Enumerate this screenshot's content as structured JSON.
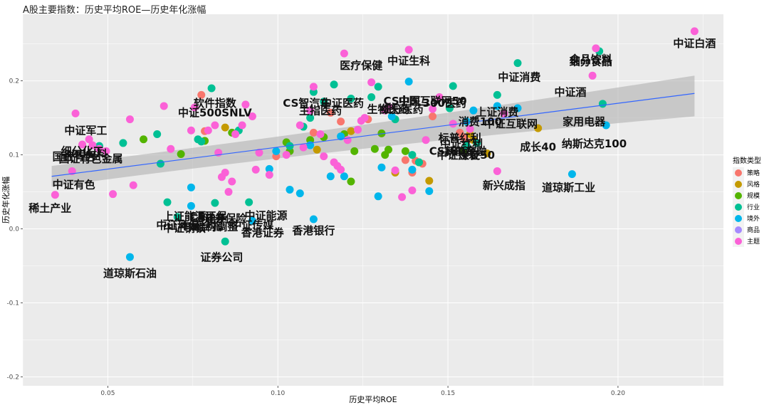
{
  "chart_data": {
    "type": "scatter",
    "title": "A股主要指数：历史平均ROE—历史年化涨幅",
    "xlabel": "历史平均ROE",
    "ylabel": "历史年化涨幅",
    "xlim": [
      0.025,
      0.231
    ],
    "ylim": [
      -0.212,
      0.29
    ],
    "xticks": [
      0.05,
      0.1,
      0.15,
      0.2
    ],
    "xtick_labels": [
      "0.05",
      "0.10",
      "0.15",
      "0.20"
    ],
    "yticks": [
      -0.2,
      -0.1,
      0.0,
      0.1,
      0.2
    ],
    "ytick_labels": [
      "-0.2",
      "-0.1",
      "0.0",
      "0.1",
      "0.2"
    ],
    "legend": {
      "title": "指数类型",
      "position": "right",
      "entries": [
        {
          "name": "策略",
          "color": "#F8766D"
        },
        {
          "name": "风格",
          "color": "#C49A00"
        },
        {
          "name": "规模",
          "color": "#53B400"
        },
        {
          "name": "行业",
          "color": "#00C094"
        },
        {
          "name": "境外",
          "color": "#00B6EB"
        },
        {
          "name": "商品",
          "color": "#A58AFF"
        },
        {
          "name": "主题",
          "color": "#FB61D7"
        }
      ]
    },
    "trend": {
      "x0": 0.0335,
      "y0": 0.071,
      "x1": 0.2225,
      "y1": 0.183,
      "band_low": [
        0.057,
        0.152
      ],
      "band_high": [
        0.085,
        0.207
      ]
    },
    "labels": [
      {
        "text": "中证白酒",
        "x": 0.2225,
        "y": 0.246
      },
      {
        "text": "食品饮料",
        "x": 0.192,
        "y": 0.224
      },
      {
        "text": "细分食品",
        "x": 0.192,
        "y": 0.221
      },
      {
        "text": "医疗保健",
        "x": 0.1245,
        "y": 0.216
      },
      {
        "text": "中证生科",
        "x": 0.1385,
        "y": 0.222
      },
      {
        "text": "中证消费",
        "x": 0.171,
        "y": 0.2
      },
      {
        "text": "中证酒",
        "x": 0.186,
        "y": 0.18
      },
      {
        "text": "软件指数",
        "x": 0.0815,
        "y": 0.165
      },
      {
        "text": "CS智汽车",
        "x": 0.1085,
        "y": 0.165
      },
      {
        "text": "中证医药",
        "x": 0.119,
        "y": 0.165
      },
      {
        "text": "CS中医",
        "x": 0.1365,
        "y": 0.168
      },
      {
        "text": "中国互联网50",
        "x": 0.1455,
        "y": 0.168
      },
      {
        "text": "生物医药",
        "x": 0.1325,
        "y": 0.157
      },
      {
        "text": "主指医药",
        "x": 0.1125,
        "y": 0.155
      },
      {
        "text": "细分医药",
        "x": 0.1365,
        "y": 0.157
      },
      {
        "text": "300医药",
        "x": 0.149,
        "y": 0.165
      },
      {
        "text": "中证500SNLV",
        "x": 0.0815,
        "y": 0.152
      },
      {
        "text": "上证消费",
        "x": 0.1645,
        "y": 0.153
      },
      {
        "text": "家用电器",
        "x": 0.19,
        "y": 0.14
      },
      {
        "text": "消费100",
        "x": 0.1595,
        "y": 0.14
      },
      {
        "text": "中证互联网",
        "x": 0.1685,
        "y": 0.137
      },
      {
        "text": "中证军工",
        "x": 0.0435,
        "y": 0.128
      },
      {
        "text": "标普红利",
        "x": 0.1535,
        "y": 0.118
      },
      {
        "text": "纳斯达克100",
        "x": 0.193,
        "y": 0.11
      },
      {
        "text": "中证红利",
        "x": 0.154,
        "y": 0.11
      },
      {
        "text": "成长40",
        "x": 0.1765,
        "y": 0.106
      },
      {
        "text": "细分化工",
        "x": 0.0425,
        "y": 0.1
      },
      {
        "text": "300材料",
        "x": 0.0435,
        "y": 0.096
      },
      {
        "text": "国证有色",
        "x": 0.04,
        "y": 0.093
      },
      {
        "text": "国证有色金属",
        "x": 0.045,
        "y": 0.09
      },
      {
        "text": "CS新能车",
        "x": 0.1515,
        "y": 0.1
      },
      {
        "text": "180金融",
        "x": 0.155,
        "y": 0.1
      },
      {
        "text": "中证煤炭",
        "x": 0.153,
        "y": 0.095
      },
      {
        "text": "上证50",
        "x": 0.1585,
        "y": 0.095
      },
      {
        "text": "中证有色",
        "x": 0.04,
        "y": 0.055
      },
      {
        "text": "新兴成指",
        "x": 0.1665,
        "y": 0.054
      },
      {
        "text": "道琼斯工业",
        "x": 0.1855,
        "y": 0.051
      },
      {
        "text": "稀土产业",
        "x": 0.033,
        "y": 0.023
      },
      {
        "text": "上证能源",
        "x": 0.0725,
        "y": 0.012
      },
      {
        "text": "CS环保",
        "x": 0.0795,
        "y": 0.012
      },
      {
        "text": "中证能源",
        "x": 0.0965,
        "y": 0.013
      },
      {
        "text": "中证传媒",
        "x": 0.0925,
        "y": 0.0
      },
      {
        "text": "中证钢铁",
        "x": 0.0725,
        "y": -0.004
      },
      {
        "text": "CS电子",
        "x": 0.0795,
        "y": 0.009
      },
      {
        "text": "证券保险",
        "x": 0.0845,
        "y": 0.009
      },
      {
        "text": "中证环保",
        "x": 0.0705,
        "y": 0.0
      },
      {
        "text": "中证全指",
        "x": 0.0775,
        "y": -0.001
      },
      {
        "text": "结构调整",
        "x": 0.082,
        "y": -0.002
      },
      {
        "text": "香港证券",
        "x": 0.0955,
        "y": -0.01
      },
      {
        "text": "香港银行",
        "x": 0.1105,
        "y": -0.007
      },
      {
        "text": "证券公司",
        "x": 0.0835,
        "y": -0.043
      },
      {
        "text": "道琼斯石油",
        "x": 0.0565,
        "y": -0.065
      }
    ],
    "series": [
      {
        "name": "策略",
        "color": "#F8766D",
        "points": [
          [
            0.0775,
            0.181
          ],
          [
            0.0785,
            0.132
          ],
          [
            0.0995,
            0.098
          ],
          [
            0.1105,
            0.13
          ],
          [
            0.1155,
            0.157
          ],
          [
            0.1185,
            0.145
          ],
          [
            0.1265,
            0.148
          ],
          [
            0.1375,
            0.093
          ],
          [
            0.1395,
            0.076
          ],
          [
            0.1405,
            0.092
          ],
          [
            0.1425,
            0.088
          ],
          [
            0.1455,
            0.152
          ],
          [
            0.1535,
            0.13
          ],
          [
            0.1545,
            0.124
          ],
          [
            0.1555,
            0.118
          ]
        ]
      },
      {
        "name": "风格",
        "color": "#C49A00",
        "points": [
          [
            0.0845,
            0.137
          ],
          [
            0.1115,
            0.107
          ],
          [
            0.1215,
            0.132
          ],
          [
            0.1345,
            0.076
          ],
          [
            0.1445,
            0.065
          ],
          [
            0.1565,
            0.128
          ],
          [
            0.1575,
            0.12
          ],
          [
            0.1615,
            0.102
          ],
          [
            0.1765,
            0.136
          ]
        ]
      },
      {
        "name": "规模",
        "color": "#53B400",
        "points": [
          [
            0.0605,
            0.121
          ],
          [
            0.0715,
            0.101
          ],
          [
            0.0785,
            0.119
          ],
          [
            0.0865,
            0.13
          ],
          [
            0.1025,
            0.117
          ],
          [
            0.1035,
            0.105
          ],
          [
            0.1095,
            0.12
          ],
          [
            0.1135,
            0.124
          ],
          [
            0.1195,
            0.128
          ],
          [
            0.1215,
            0.064
          ],
          [
            0.1225,
            0.105
          ],
          [
            0.1285,
            0.108
          ],
          [
            0.1305,
            0.129
          ],
          [
            0.1315,
            0.1
          ],
          [
            0.1325,
            0.107
          ],
          [
            0.1375,
            0.105
          ],
          [
            0.1415,
            0.09
          ],
          [
            0.1545,
            0.106
          ]
        ]
      },
      {
        "name": "行业",
        "color": "#00C094",
        "points": [
          [
            0.0475,
            0.112
          ],
          [
            0.0545,
            0.116
          ],
          [
            0.0645,
            0.128
          ],
          [
            0.0655,
            0.088
          ],
          [
            0.0675,
            0.036
          ],
          [
            0.0705,
            0.016
          ],
          [
            0.0765,
            0.121
          ],
          [
            0.0775,
            0.118
          ],
          [
            0.0805,
            0.19
          ],
          [
            0.0815,
            0.035
          ],
          [
            0.0845,
            -0.017
          ],
          [
            0.0885,
            0.133
          ],
          [
            0.0915,
            0.036
          ],
          [
            0.1035,
            0.112
          ],
          [
            0.1075,
            0.138
          ],
          [
            0.1095,
            0.15
          ],
          [
            0.1105,
            0.185
          ],
          [
            0.1135,
            0.172
          ],
          [
            0.1165,
            0.195
          ],
          [
            0.1215,
            0.176
          ],
          [
            0.1275,
            0.178
          ],
          [
            0.1295,
            0.192
          ],
          [
            0.1345,
            0.148
          ],
          [
            0.1395,
            0.1
          ],
          [
            0.1415,
            0.09
          ],
          [
            0.1505,
            0.163
          ],
          [
            0.1515,
            0.193
          ],
          [
            0.1555,
            0.112
          ],
          [
            0.1585,
            0.116
          ],
          [
            0.1645,
            0.181
          ],
          [
            0.1705,
            0.224
          ],
          [
            0.1955,
            0.169
          ],
          [
            0.1945,
            0.24
          ]
        ]
      },
      {
        "name": "境外",
        "color": "#00B6EB",
        "points": [
          [
            0.0565,
            -0.038
          ],
          [
            0.0745,
            0.031
          ],
          [
            0.0745,
            0.056
          ],
          [
            0.0925,
            0.011
          ],
          [
            0.0975,
            0.081
          ],
          [
            0.0995,
            0.105
          ],
          [
            0.1035,
            0.053
          ],
          [
            0.1065,
            0.048
          ],
          [
            0.1095,
            0.113
          ],
          [
            0.1105,
            0.013
          ],
          [
            0.1155,
            0.071
          ],
          [
            0.1185,
            0.125
          ],
          [
            0.1195,
            0.071
          ],
          [
            0.1295,
            0.044
          ],
          [
            0.1305,
            0.083
          ],
          [
            0.1335,
            0.152
          ],
          [
            0.1385,
            0.199
          ],
          [
            0.1395,
            0.08
          ],
          [
            0.1445,
            0.051
          ],
          [
            0.1555,
            0.145
          ],
          [
            0.1575,
            0.16
          ],
          [
            0.1645,
            0.166
          ],
          [
            0.1705,
            0.163
          ],
          [
            0.1865,
            0.074
          ],
          [
            0.1965,
            0.14
          ]
        ]
      },
      {
        "name": "主题",
        "color": "#FB61D7",
        "points": [
          [
            0.0345,
            0.046
          ],
          [
            0.0395,
            0.078
          ],
          [
            0.0405,
            0.156
          ],
          [
            0.0425,
            0.114
          ],
          [
            0.0445,
            0.121
          ],
          [
            0.0455,
            0.113
          ],
          [
            0.0475,
            0.108
          ],
          [
            0.0495,
            0.105
          ],
          [
            0.0515,
            0.047
          ],
          [
            0.0565,
            0.148
          ],
          [
            0.0575,
            0.059
          ],
          [
            0.0665,
            0.166
          ],
          [
            0.0685,
            0.108
          ],
          [
            0.0745,
            0.133
          ],
          [
            0.0755,
            0.164
          ],
          [
            0.0795,
            0.133
          ],
          [
            0.0815,
            0.14
          ],
          [
            0.0825,
            0.103
          ],
          [
            0.0835,
            0.07
          ],
          [
            0.0845,
            0.076
          ],
          [
            0.0855,
            0.05
          ],
          [
            0.0865,
            0.064
          ],
          [
            0.0875,
            0.128
          ],
          [
            0.0895,
            0.14
          ],
          [
            0.0905,
            0.168
          ],
          [
            0.0925,
            0.152
          ],
          [
            0.0935,
            0.08
          ],
          [
            0.0945,
            0.103
          ],
          [
            0.0975,
            0.073
          ],
          [
            0.1025,
            0.1
          ],
          [
            0.1065,
            0.14
          ],
          [
            0.1075,
            0.11
          ],
          [
            0.1095,
            0.16
          ],
          [
            0.1105,
            0.192
          ],
          [
            0.1125,
            0.128
          ],
          [
            0.1135,
            0.098
          ],
          [
            0.1165,
            0.09
          ],
          [
            0.1175,
            0.085
          ],
          [
            0.1185,
            0.08
          ],
          [
            0.1195,
            0.237
          ],
          [
            0.1205,
            0.12
          ],
          [
            0.1235,
            0.134
          ],
          [
            0.1245,
            0.146
          ],
          [
            0.1255,
            0.15
          ],
          [
            0.1275,
            0.198
          ],
          [
            0.1315,
            0.16
          ],
          [
            0.1325,
            0.165
          ],
          [
            0.1345,
            0.079
          ],
          [
            0.1365,
            0.043
          ],
          [
            0.1385,
            0.242
          ],
          [
            0.1395,
            0.052
          ],
          [
            0.1435,
            0.12
          ],
          [
            0.1455,
            0.162
          ],
          [
            0.1475,
            0.178
          ],
          [
            0.1515,
            0.142
          ],
          [
            0.1565,
            0.135
          ],
          [
            0.1645,
            0.078
          ],
          [
            0.1665,
            0.156
          ],
          [
            0.1925,
            0.207
          ],
          [
            0.1935,
            0.244
          ],
          [
            0.2225,
            0.267
          ]
        ]
      }
    ]
  }
}
